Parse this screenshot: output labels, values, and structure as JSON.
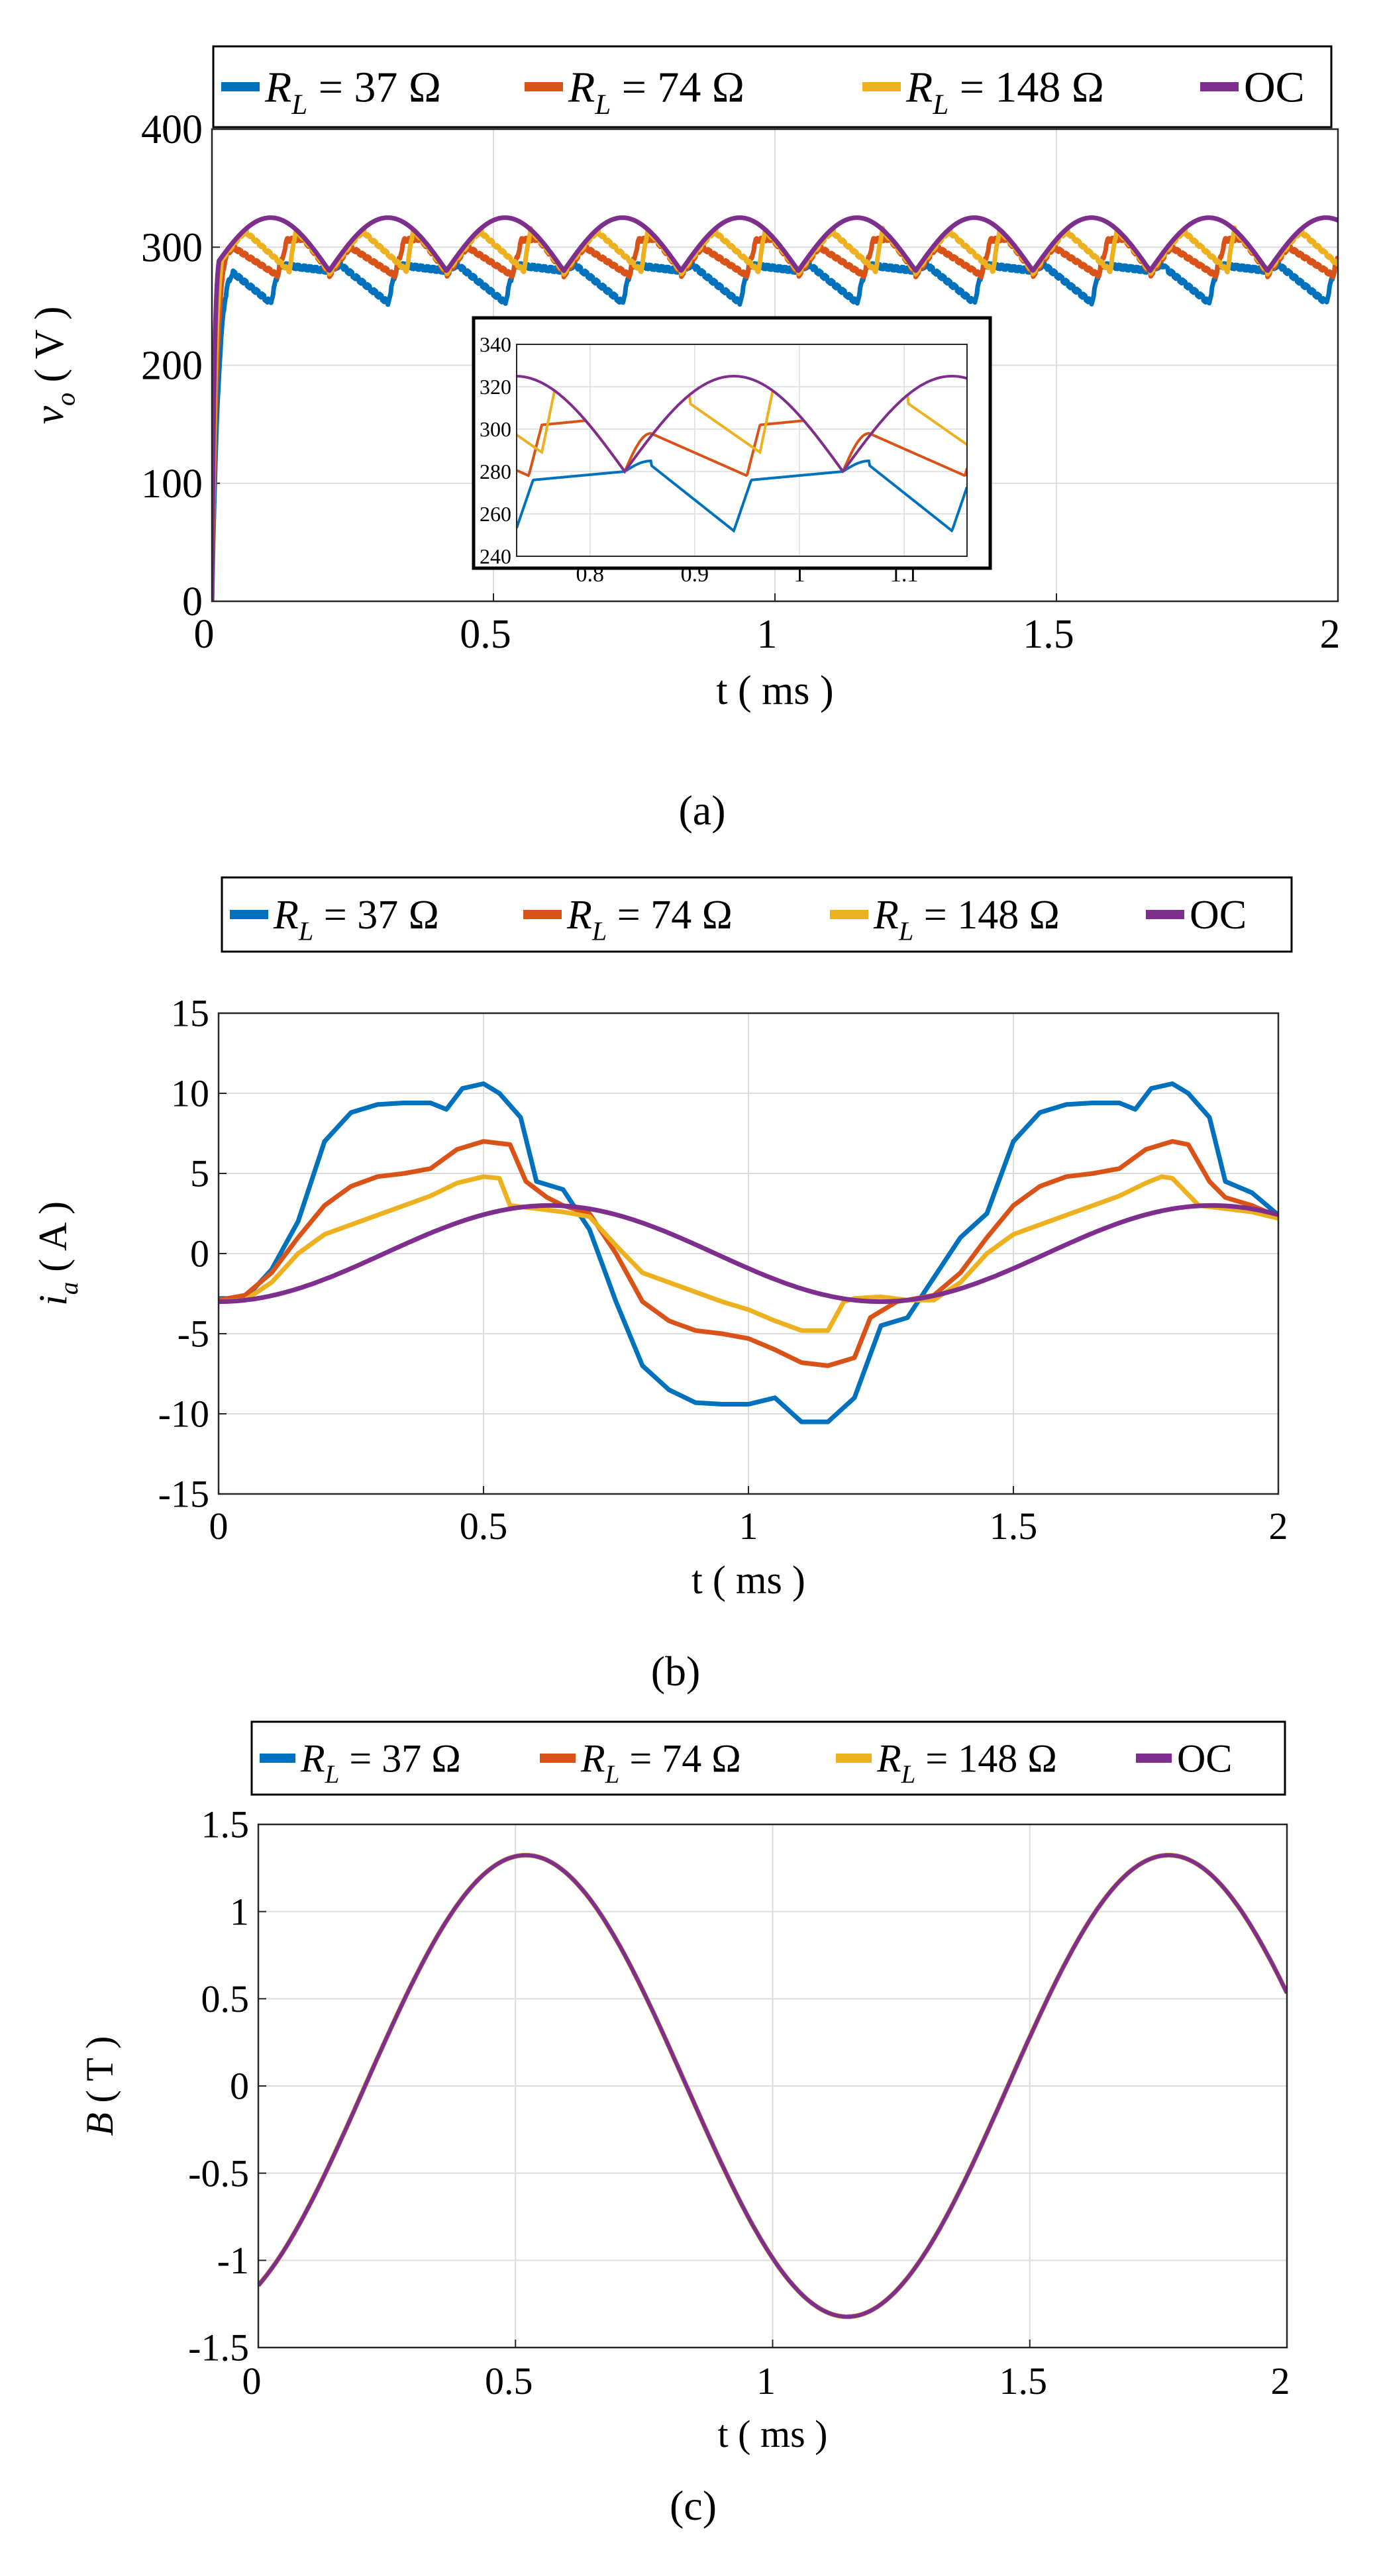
{
  "colors": {
    "rl37": "#0072BD",
    "rl74": "#D95319",
    "rl148": "#EDB120",
    "oc": "#7E2F8E"
  },
  "chart_data": [
    {
      "id": "a",
      "type": "line",
      "caption": "(a)",
      "xlabel": "t ( ms )",
      "ylabel": "vo ( V )",
      "ylabel_main": "v",
      "ylabel_sub": "o",
      "ylabel_unit": "( V )",
      "xlim": [
        0,
        2
      ],
      "ylim": [
        0,
        400
      ],
      "xticks": [
        0,
        0.5,
        1,
        1.5,
        2
      ],
      "xtick_labels": [
        "0",
        "0.5",
        "1",
        "1.5",
        "2"
      ],
      "yticks": [
        0,
        100,
        200,
        300,
        400
      ],
      "ytick_labels": [
        "0",
        "100",
        "200",
        "300",
        "400"
      ],
      "grid": true,
      "legend": [
        {
          "label": "RL = 37 Ω",
          "main": "R",
          "sub": "L",
          "rest": " = 37 Ω",
          "color": "#0072BD"
        },
        {
          "label": "RL = 74 Ω",
          "main": "R",
          "sub": "L",
          "rest": " = 74 Ω",
          "color": "#D95319"
        },
        {
          "label": "RL = 148 Ω",
          "main": "R",
          "sub": "L",
          "rest": " = 148 Ω",
          "color": "#EDB120"
        },
        {
          "label": "OC",
          "main": "OC",
          "sub": "",
          "rest": "",
          "color": "#7E2F8E"
        }
      ],
      "series_summary": {
        "OC": {
          "peak": 325,
          "valley": 280,
          "period_ms": 0.208
        },
        "RL = 148 Ω": {
          "peak": 322,
          "valley": 278
        },
        "RL = 74 Ω": {
          "peak": 308,
          "valley": 276
        },
        "RL = 37 Ω": {
          "peak": 285,
          "valley": 252
        }
      },
      "inset": {
        "xlim": [
          0.73,
          1.16
        ],
        "ylim": [
          240,
          340
        ],
        "xticks": [
          0.8,
          0.9,
          1,
          1.1
        ],
        "xtick_labels": [
          "0.8",
          "0.9",
          "1",
          "1.1"
        ],
        "yticks": [
          240,
          260,
          280,
          300,
          320,
          340
        ],
        "ytick_labels": [
          "240",
          "260",
          "280",
          "300",
          "320",
          "340"
        ]
      }
    },
    {
      "id": "b",
      "type": "line",
      "caption": "(b)",
      "xlabel": "t ( ms )",
      "ylabel": "ia ( A )",
      "ylabel_main": "i",
      "ylabel_sub": "a",
      "ylabel_unit": "( A )",
      "xlim": [
        0,
        2
      ],
      "ylim": [
        -15,
        15
      ],
      "xticks": [
        0,
        0.5,
        1,
        1.5,
        2
      ],
      "xtick_labels": [
        "0",
        "0.5",
        "1",
        "1.5",
        "2"
      ],
      "yticks": [
        -15,
        -10,
        -5,
        0,
        5,
        10,
        15
      ],
      "ytick_labels": [
        "-15",
        "-10",
        "-5",
        "0",
        "5",
        "10",
        "15"
      ],
      "grid": true,
      "legend": [
        {
          "label": "RL = 37 Ω",
          "main": "R",
          "sub": "L",
          "rest": " = 37 Ω",
          "color": "#0072BD"
        },
        {
          "label": "RL = 74 Ω",
          "main": "R",
          "sub": "L",
          "rest": " = 74 Ω",
          "color": "#D95319"
        },
        {
          "label": "RL = 148 Ω",
          "main": "R",
          "sub": "L",
          "rest": " = 148 Ω",
          "color": "#EDB120"
        },
        {
          "label": "OC",
          "main": "OC",
          "sub": "",
          "rest": "",
          "color": "#7E2F8E"
        }
      ],
      "series_summary": {
        "RL = 37 Ω": {
          "peak": 10.6,
          "trough": -10.6
        },
        "RL = 74 Ω": {
          "peak": 7.1,
          "trough": -7.1
        },
        "RL = 148 Ω": {
          "peak": 4.9,
          "trough": -4.9
        },
        "OC": {
          "peak": 3.0,
          "trough": -3.0
        }
      },
      "series": [
        {
          "name": "RL = 37 Ω",
          "color": "#0072BD",
          "x": [
            0,
            0.05,
            0.1,
            0.15,
            0.2,
            0.25,
            0.3,
            0.35,
            0.4,
            0.43,
            0.46,
            0.5,
            0.53,
            0.57,
            0.6,
            0.65,
            0.7,
            0.75,
            0.8,
            0.85,
            0.9,
            0.95,
            1.0,
            1.05,
            1.1,
            1.15,
            1.2,
            1.25,
            1.3,
            1.35,
            1.4,
            1.45,
            1.5,
            1.55,
            1.6,
            1.65,
            1.7,
            1.73,
            1.76,
            1.8,
            1.83,
            1.87,
            1.9,
            1.95,
            2.0
          ],
          "y": [
            -2.8,
            -2.8,
            -1.0,
            2.0,
            7.0,
            8.8,
            9.3,
            9.4,
            9.4,
            9.0,
            10.3,
            10.6,
            10.0,
            8.5,
            4.5,
            4.0,
            1.5,
            -3.0,
            -7.0,
            -8.5,
            -9.3,
            -9.4,
            -9.4,
            -9.0,
            -10.5,
            -10.5,
            -9.0,
            -4.5,
            -4.0,
            -1.5,
            1.0,
            2.5,
            7.0,
            8.8,
            9.3,
            9.4,
            9.4,
            9.0,
            10.3,
            10.6,
            10.0,
            8.5,
            4.5,
            3.8,
            2.4
          ]
        },
        {
          "name": "RL = 74 Ω",
          "color": "#D95319",
          "x": [
            0,
            0.05,
            0.1,
            0.15,
            0.2,
            0.25,
            0.3,
            0.35,
            0.4,
            0.45,
            0.5,
            0.55,
            0.58,
            0.62,
            0.65,
            0.7,
            0.75,
            0.8,
            0.85,
            0.9,
            0.95,
            1.0,
            1.05,
            1.1,
            1.15,
            1.2,
            1.23,
            1.28,
            1.3,
            1.35,
            1.4,
            1.45,
            1.5,
            1.55,
            1.6,
            1.65,
            1.7,
            1.75,
            1.8,
            1.83,
            1.87,
            1.9,
            1.95,
            2.0
          ],
          "y": [
            -2.9,
            -2.6,
            -1.2,
            1.0,
            3.0,
            4.2,
            4.8,
            5.0,
            5.3,
            6.5,
            7.0,
            6.8,
            4.5,
            3.5,
            3.0,
            2.5,
            0.0,
            -3.0,
            -4.2,
            -4.8,
            -5.0,
            -5.3,
            -6.0,
            -6.8,
            -7.0,
            -6.5,
            -4.0,
            -3.0,
            -2.9,
            -2.6,
            -1.2,
            1.0,
            3.0,
            4.2,
            4.8,
            5.0,
            5.3,
            6.5,
            7.0,
            6.8,
            4.5,
            3.5,
            3.0,
            2.3
          ]
        },
        {
          "name": "RL = 148 Ω",
          "color": "#EDB120",
          "x": [
            0,
            0.05,
            0.1,
            0.15,
            0.2,
            0.25,
            0.3,
            0.35,
            0.4,
            0.45,
            0.5,
            0.53,
            0.55,
            0.6,
            0.65,
            0.7,
            0.75,
            0.8,
            0.85,
            0.9,
            0.95,
            1.0,
            1.05,
            1.1,
            1.15,
            1.18,
            1.2,
            1.25,
            1.3,
            1.35,
            1.4,
            1.45,
            1.5,
            1.55,
            1.6,
            1.65,
            1.7,
            1.75,
            1.78,
            1.8,
            1.85,
            1.9,
            1.95,
            2.0
          ],
          "y": [
            -3.0,
            -2.9,
            -1.8,
            0.0,
            1.2,
            1.8,
            2.4,
            3.0,
            3.6,
            4.4,
            4.8,
            4.7,
            3.0,
            2.8,
            2.6,
            2.3,
            0.5,
            -1.2,
            -1.8,
            -2.4,
            -3.0,
            -3.5,
            -4.2,
            -4.8,
            -4.8,
            -3.0,
            -2.8,
            -2.7,
            -2.9,
            -2.9,
            -1.8,
            0.0,
            1.2,
            1.8,
            2.4,
            3.0,
            3.6,
            4.4,
            4.8,
            4.7,
            3.0,
            2.8,
            2.6,
            2.2
          ]
        }
      ],
      "oc_model": {
        "amplitude": 3.0,
        "period_ms": 1.25,
        "peak_at_ms": 0.625
      }
    },
    {
      "id": "c",
      "type": "line",
      "caption": "(c)",
      "xlabel": "t ( ms )",
      "ylabel": "B ( T )",
      "ylabel_main": "B",
      "ylabel_sub": "",
      "ylabel_unit": "( T )",
      "xlim": [
        0,
        2
      ],
      "ylim": [
        -1.5,
        1.5
      ],
      "xticks": [
        0,
        0.5,
        1,
        1.5,
        2
      ],
      "xtick_labels": [
        "0",
        "0.5",
        "1",
        "1.5",
        "2"
      ],
      "yticks": [
        -1.5,
        -1,
        -0.5,
        0,
        0.5,
        1,
        1.5
      ],
      "ytick_labels": [
        "-1.5",
        "-1",
        "-0.5",
        "0",
        "0.5",
        "1",
        "1.5"
      ],
      "grid": true,
      "legend": [
        {
          "label": "RL = 37 Ω",
          "main": "R",
          "sub": "L",
          "rest": " = 37 Ω",
          "color": "#0072BD"
        },
        {
          "label": "RL = 74 Ω",
          "main": "R",
          "sub": "L",
          "rest": " = 74 Ω",
          "color": "#D95319"
        },
        {
          "label": "RL = 148 Ω",
          "main": "R",
          "sub": "L",
          "rest": " = 148 Ω",
          "color": "#EDB120"
        },
        {
          "label": "OC",
          "main": "OC",
          "sub": "",
          "rest": "",
          "color": "#7E2F8E"
        }
      ],
      "series_summary": {
        "all": {
          "amplitude": 1.33,
          "period_ms": 1.25,
          "peak_at_ms": 0.52,
          "start_value": -1.12,
          "end_value": 0.52
        }
      }
    }
  ]
}
